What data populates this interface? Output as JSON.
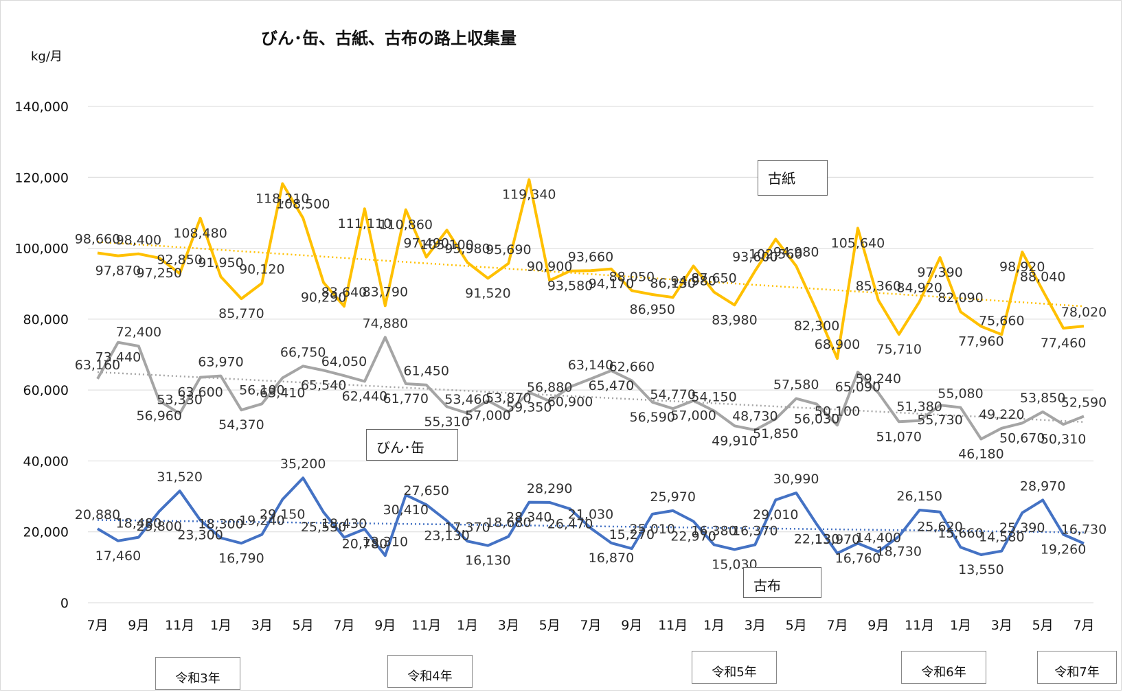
{
  "chart_data": {
    "type": "line",
    "title": "びん･缶、古紙、古布の路上収集量",
    "ylabel": "kg/月",
    "ylim": [
      0,
      140000
    ],
    "yticks": [
      "0",
      "20,000",
      "40,000",
      "60,000",
      "80,000",
      "100,000",
      "120,000",
      "140,000"
    ],
    "xticks": [
      "7月",
      "9月",
      "11月",
      "1月",
      "3月",
      "5月",
      "7月",
      "9月",
      "11月",
      "1月",
      "3月",
      "5月",
      "7月",
      "9月",
      "11月",
      "1月",
      "3月",
      "5月",
      "7月",
      "9月",
      "11月",
      "1月",
      "3月",
      "5月",
      "7月"
    ],
    "eras": [
      "令和3年",
      "令和4年",
      "令和5年",
      "令和6年",
      "令和7年"
    ],
    "colors": {
      "koshi": "#FFC000",
      "binkan": "#A5A5A5",
      "kofu": "#4472C4"
    },
    "grid": true,
    "trendlines": true,
    "series": [
      {
        "name": "古紙",
        "values": [
          98660,
          97870,
          98400,
          97250,
          92850,
          108480,
          91950,
          85770,
          90120,
          118210,
          108500,
          90290,
          83640,
          111110,
          83790,
          110860,
          97490,
          105100,
          95980,
          91520,
          95690,
          119340,
          90900,
          93580,
          93660,
          94170,
          88050,
          86950,
          86130,
          94980,
          87650,
          83980,
          93600,
          102560,
          94980,
          82300,
          68900,
          105640,
          85360,
          75710,
          84920,
          97390,
          82090,
          77960,
          75660,
          98920,
          88040,
          77460,
          78020
        ],
        "labels": [
          "98,660",
          "97,870",
          "98,400",
          "97,250",
          "92,850",
          "108,480",
          "91,950",
          "85,770",
          "90,120",
          "118,210",
          "108,500",
          "90,290",
          "83,640",
          "111,110",
          "83,790",
          "110,860",
          "97,490",
          "105,100",
          "95,980",
          "91,520",
          "95,690",
          "119,340",
          "90,900",
          "93,580",
          "93,660",
          "94,170",
          "88,050",
          "86,950",
          "86,130",
          "94,980",
          "87,650",
          "83,980",
          "93,600",
          "102,560",
          "94,980",
          "82,300",
          "68,900",
          "105,640",
          "85,360",
          "75,710",
          "84,920",
          "97,390",
          "82,090",
          "77,960",
          "75,660",
          "98,920",
          "88,040",
          "77,460",
          "78,020"
        ]
      },
      {
        "name": "びん･缶",
        "values": [
          63160,
          73440,
          72400,
          56960,
          53330,
          63600,
          63970,
          54370,
          56100,
          63410,
          66750,
          65540,
          64050,
          62440,
          74880,
          61770,
          61450,
          55310,
          53460,
          57000,
          53870,
          59350,
          56880,
          60900,
          63140,
          65470,
          62660,
          56590,
          54770,
          57000,
          54150,
          49910,
          48730,
          51850,
          57580,
          56030,
          50100,
          65090,
          59240,
          51070,
          51380,
          55730,
          55080,
          46180,
          49220,
          50670,
          53850,
          50310,
          52590
        ],
        "labels": [
          "63,160",
          "73,440",
          "72,400",
          "56,960",
          "53,330",
          "63,600",
          "63,970",
          "54,370",
          "56,100",
          "63,410",
          "66,750",
          "65,540",
          "64,050",
          "62,440",
          "74,880",
          "61,770",
          "61,450",
          "55,310",
          "53,460",
          "57,000",
          "53,870",
          "59,350",
          "56,880",
          "60,900",
          "63,140",
          "65,470",
          "62,660",
          "56,590",
          "54,770",
          "57,000",
          "54,150",
          "49,910",
          "48,730",
          "51,850",
          "57,580",
          "56,030",
          "50,100",
          "65,090",
          "59,240",
          "51,070",
          "51,380",
          "55,730",
          "55,080",
          "46,180",
          "49,220",
          "50,670",
          "53,850",
          "50,310",
          "52,590"
        ]
      },
      {
        "name": "古布",
        "values": [
          20880,
          17460,
          18480,
          25800,
          31520,
          23300,
          18300,
          16790,
          19240,
          29150,
          35200,
          25530,
          18430,
          20780,
          13310,
          30410,
          27650,
          23130,
          17370,
          16130,
          18680,
          28340,
          28290,
          26470,
          21030,
          16870,
          15270,
          25010,
          25970,
          22970,
          16380,
          15030,
          16370,
          29010,
          30990,
          22130,
          13970,
          16760,
          14400,
          18730,
          26150,
          25620,
          15660,
          13550,
          14580,
          25390,
          28970,
          19260,
          16730
        ],
        "labels": [
          "20,880",
          "17,460",
          "18,480",
          "25,800",
          "31,520",
          "23,300",
          "18,300",
          "16,790",
          "19,240",
          "29,150",
          "35,200",
          "25,530",
          "18,430",
          "20,780",
          "13,310",
          "30,410",
          "27,650",
          "23,130",
          "17,370",
          "16,130",
          "18,680",
          "28,340",
          "28,290",
          "26,470",
          "21,030",
          "16,870",
          "15,270",
          "25,010",
          "25,970",
          "22,970",
          "16,380",
          "15,030",
          "16,370",
          "29,010",
          "30,990",
          "22,130",
          "13,970",
          "16,760",
          "14,400",
          "18,730",
          "26,150",
          "25,620",
          "15,660",
          "13,550",
          "14,580",
          "25,390",
          "28,970",
          "19,260",
          "16,730"
        ]
      }
    ],
    "callouts": {
      "koshi": "古紙",
      "binkan": "びん･缶",
      "kofu": "古布"
    }
  }
}
